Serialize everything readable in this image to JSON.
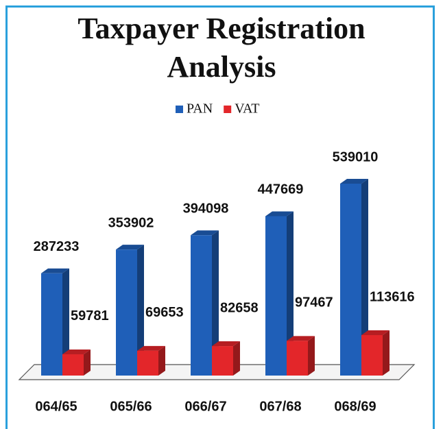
{
  "chart_data": {
    "type": "bar3d",
    "title": "Taxpayer Registration Analysis",
    "categories": [
      "064/65",
      "065/66",
      "066/67",
      "067/68",
      "068/69"
    ],
    "series": [
      {
        "name": "PAN",
        "color": "#1f5fb8",
        "values": [
          287233,
          353902,
          394098,
          447669,
          539010
        ]
      },
      {
        "name": "VAT",
        "color": "#e3262a",
        "values": [
          59781,
          69653,
          82658,
          97467,
          113616
        ]
      }
    ]
  }
}
